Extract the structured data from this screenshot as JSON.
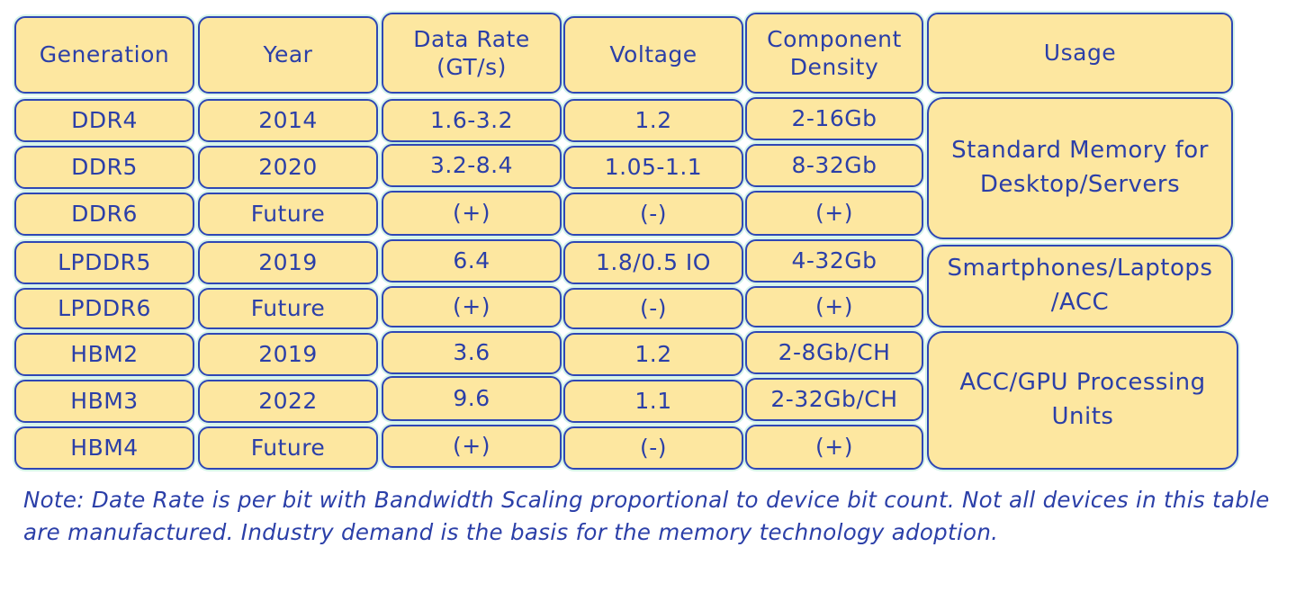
{
  "table": {
    "headers": {
      "generation": "Generation",
      "year": "Year",
      "data_rate_line1": "Data Rate",
      "data_rate_line2": "(GT/s)",
      "voltage": "Voltage",
      "density_line1": "Component",
      "density_line2": "Density",
      "usage": "Usage"
    },
    "rows": [
      {
        "generation": "DDR4",
        "year": "2014",
        "data_rate": "1.6-3.2",
        "voltage": "1.2",
        "density": "2-16Gb"
      },
      {
        "generation": "DDR5",
        "year": "2020",
        "data_rate": "3.2-8.4",
        "voltage": "1.05-1.1",
        "density": "8-32Gb"
      },
      {
        "generation": "DDR6",
        "year": "Future",
        "data_rate": "(+)",
        "voltage": "(-)",
        "density": "(+)"
      },
      {
        "generation": "LPDDR5",
        "year": "2019",
        "data_rate": "6.4",
        "voltage": "1.8/0.5 IO",
        "density": "4-32Gb"
      },
      {
        "generation": "LPDDR6",
        "year": "Future",
        "data_rate": "(+)",
        "voltage": "(-)",
        "density": "(+)"
      },
      {
        "generation": "HBM2",
        "year": "2019",
        "data_rate": "3.6",
        "voltage": "1.2",
        "density": "2-8Gb/CH"
      },
      {
        "generation": "HBM3",
        "year": "2022",
        "data_rate": "9.6",
        "voltage": "1.1",
        "density": "2-32Gb/CH"
      },
      {
        "generation": "HBM4",
        "year": "Future",
        "data_rate": "(+)",
        "voltage": "(-)",
        "density": "(+)"
      }
    ],
    "usage_groups": [
      {
        "line1": "Standard Memory for",
        "line2": "Desktop/Servers"
      },
      {
        "line1": "Smartphones/Laptops",
        "line2": "/ACC"
      },
      {
        "line1": "ACC/GPU Processing",
        "line2": "Units"
      }
    ]
  },
  "note": "Note: Date Rate is per bit with Bandwidth Scaling proportional to device bit count. Not all devices in this table are manufactured. Industry demand is the basis for the memory technology adoption.",
  "colors": {
    "cell_fill": "#fde7a0",
    "stroke_text": "#2f47b5"
  }
}
